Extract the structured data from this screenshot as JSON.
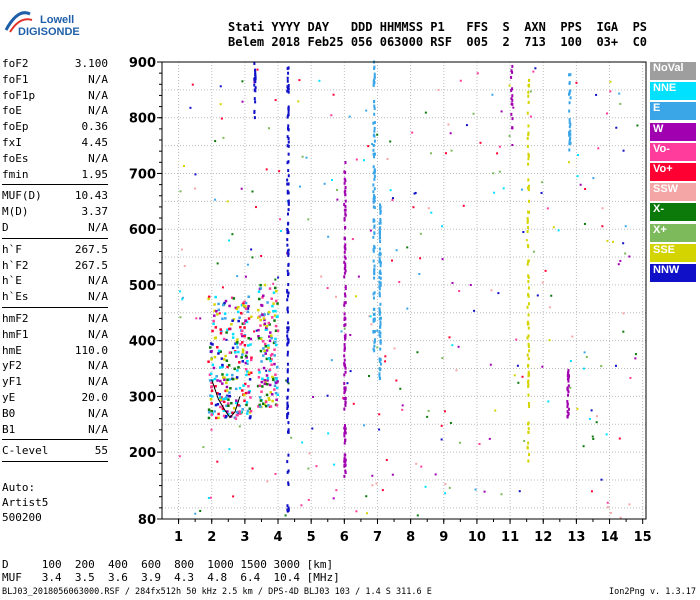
{
  "logo": {
    "line1": "Lowell",
    "line2": "DIGISONDE"
  },
  "header": {
    "line1": "Stati YYYY DAY   DDD HHMMSS P1   FFS  S  AXN  PPS  IGA  PS",
    "line2": "Belem 2018 Feb25 056 063000 RSF  005  2  713  100  03+  C0"
  },
  "params": {
    "groups": [
      [
        {
          "k": "foF2",
          "v": "3.100"
        },
        {
          "k": "foF1",
          "v": "N/A"
        },
        {
          "k": "foF1p",
          "v": "N/A"
        },
        {
          "k": "foE",
          "v": "N/A"
        },
        {
          "k": "foEp",
          "v": "0.36"
        },
        {
          "k": "fxI",
          "v": "4.45"
        },
        {
          "k": "foEs",
          "v": "N/A"
        },
        {
          "k": "fmin",
          "v": "1.95"
        }
      ],
      [
        {
          "k": "MUF(D)",
          "v": "10.43"
        },
        {
          "k": "M(D)",
          "v": "3.37"
        },
        {
          "k": "D",
          "v": "N/A"
        }
      ],
      [
        {
          "k": "h`F",
          "v": "267.5"
        },
        {
          "k": "h`F2",
          "v": "267.5"
        },
        {
          "k": "h`E",
          "v": "N/A"
        },
        {
          "k": "h`Es",
          "v": "N/A"
        }
      ],
      [
        {
          "k": "hmF2",
          "v": "N/A"
        },
        {
          "k": "hmF1",
          "v": "N/A"
        },
        {
          "k": "hmE",
          "v": "110.0"
        },
        {
          "k": "yF2",
          "v": "N/A"
        },
        {
          "k": "yF1",
          "v": "N/A"
        },
        {
          "k": "yE",
          "v": "20.0"
        },
        {
          "k": "B0",
          "v": "N/A"
        },
        {
          "k": "B1",
          "v": "N/A"
        }
      ],
      [
        {
          "k": "C-level",
          "v": "55"
        }
      ]
    ]
  },
  "auto": {
    "l1": "Auto:",
    "l2": "Artist5",
    "l3": "500200"
  },
  "muf_table": {
    "line1": "D     100  200  400  600  800  1000 1500 3000 [km]",
    "line2": "MUF   3.4  3.5  3.6  3.9  4.3  4.8  6.4  10.4 [MHz]"
  },
  "footer": {
    "file": "BLJ03_2018056063000.RSF / 284fx512h 50 kHz 2.5 km / DPS-4D BLJ03 103 / 1.4 S 311.6 E",
    "version": "Ion2Png v. 1.3.17"
  },
  "legend": [
    {
      "label": "NoVal",
      "color": "#9e9e9e"
    },
    {
      "label": "NNE",
      "color": "#00e0ff"
    },
    {
      "label": "E",
      "color": "#3aa6e8"
    },
    {
      "label": "W",
      "color": "#a000b0"
    },
    {
      "label": "Vo-",
      "color": "#ff3c9c"
    },
    {
      "label": "Vo+",
      "color": "#ff0033"
    },
    {
      "label": "SSW",
      "color": "#f4a6a6"
    },
    {
      "label": "X-",
      "color": "#0b7a0b"
    },
    {
      "label": "X+",
      "color": "#7cba5c"
    },
    {
      "label": "SSE",
      "color": "#d4d400"
    },
    {
      "label": "NNW",
      "color": "#1010c8"
    }
  ],
  "chart_data": {
    "type": "scatter",
    "xlabel": "",
    "ylabel": "",
    "xlim": [
      0.5,
      15.1
    ],
    "ylim": [
      80,
      900
    ],
    "xticks": [
      1,
      2,
      3,
      4,
      5,
      6,
      7,
      8,
      9,
      10,
      11,
      12,
      13,
      14,
      15
    ],
    "yticks": [
      80,
      200,
      300,
      400,
      500,
      600,
      700,
      800,
      900
    ],
    "grid": true,
    "legend_placement": "right",
    "trace_curve": {
      "x": [
        2.0,
        2.2,
        2.4,
        2.55,
        2.7,
        2.85
      ],
      "y": [
        330,
        295,
        275,
        262,
        272,
        300
      ]
    },
    "clusters": [
      {
        "x_range": [
          1.9,
          3.2
        ],
        "y_range": [
          260,
          480
        ],
        "n": 260,
        "colors": [
          "#a000b0",
          "#ff3c9c",
          "#ff0033",
          "#3aa6e8",
          "#00e0ff",
          "#0b7a0b",
          "#d4d400",
          "#1010c8"
        ]
      },
      {
        "x_range": [
          3.4,
          4.0
        ],
        "y_range": [
          280,
          500
        ],
        "n": 150,
        "colors": [
          "#a000b0",
          "#ff3c9c",
          "#3aa6e8",
          "#00e0ff",
          "#0b7a0b",
          "#d4d400"
        ]
      }
    ],
    "vertical_traces": [
      {
        "x": 4.3,
        "y_range": [
          80,
          900
        ],
        "color": "#1010c8",
        "n": 120
      },
      {
        "x": 6.02,
        "y_range": [
          150,
          720
        ],
        "color": "#a000b0",
        "n": 110
      },
      {
        "x": 6.9,
        "y_range": [
          380,
          900
        ],
        "color": "#3aa6e8",
        "n": 90
      },
      {
        "x": 7.08,
        "y_range": [
          330,
          650
        ],
        "color": "#3aa6e8",
        "n": 80
      },
      {
        "x": 3.3,
        "y_range": [
          800,
          900
        ],
        "color": "#1010c8",
        "n": 20
      },
      {
        "x": 11.55,
        "y_range": [
          180,
          880
        ],
        "color": "#d4d400",
        "n": 80
      },
      {
        "x": 12.75,
        "y_range": [
          260,
          360
        ],
        "color": "#a000b0",
        "n": 25
      },
      {
        "x": 12.8,
        "y_range": [
          740,
          900
        ],
        "color": "#3aa6e8",
        "n": 25
      },
      {
        "x": 11.05,
        "y_range": [
          780,
          900
        ],
        "color": "#a000b0",
        "n": 15
      }
    ],
    "scatter_noise": {
      "n": 320,
      "x_range": [
        1,
        15
      ],
      "y_range": [
        80,
        900
      ],
      "colors": [
        "#3aa6e8",
        "#a000b0",
        "#ff0033",
        "#ff3c9c",
        "#0b7a0b",
        "#d4d400",
        "#1010c8",
        "#f4a6a6",
        "#00e0ff",
        "#7cba5c"
      ]
    }
  }
}
